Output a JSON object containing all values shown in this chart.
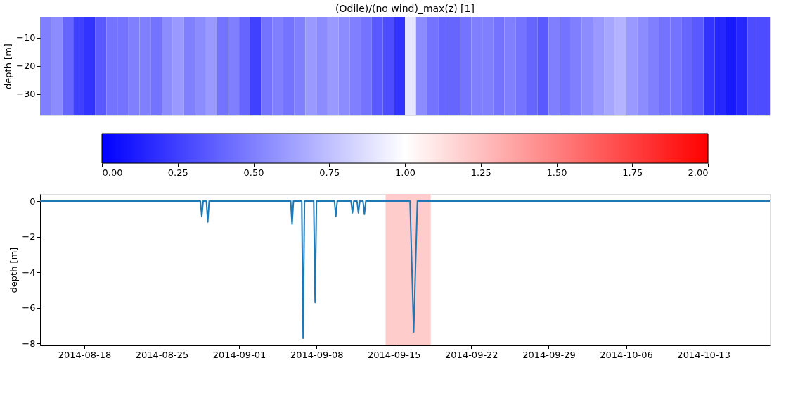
{
  "chart_data": [
    {
      "type": "heatmap",
      "title": "(Odile)/(no wind)_max(z) [1]",
      "ylabel": "depth [m]",
      "categories": [
        null,
        null,
        null,
        null,
        null,
        null,
        null,
        null,
        null,
        null,
        null,
        null,
        null,
        null,
        null,
        null,
        null,
        null,
        null,
        null,
        null,
        null,
        null,
        null,
        null,
        null,
        null,
        null,
        null,
        null,
        null,
        null,
        null,
        null,
        null,
        null,
        null,
        null,
        null,
        null,
        null,
        null,
        null,
        null,
        null,
        null,
        null,
        null,
        null,
        null,
        null,
        null,
        null,
        null,
        null,
        null,
        null,
        null,
        null,
        null,
        null,
        null,
        null,
        null,
        null,
        null
      ],
      "y_categories": [
        null,
        "−10",
        null,
        "−20",
        null,
        "−30",
        null
      ],
      "cells": [
        [
          0.5,
          0.55,
          0.4,
          0.25,
          0.2,
          0.35,
          0.45,
          0.45,
          0.5,
          0.5,
          0.45,
          0.55,
          0.6,
          0.5,
          0.55,
          0.6,
          0.45,
          0.5,
          0.4,
          0.25,
          0.45,
          0.5,
          0.45,
          0.5,
          0.6,
          0.55,
          0.6,
          0.55,
          0.5,
          0.45,
          0.35,
          0.3,
          0.2,
          0.9,
          0.55,
          0.45,
          0.4,
          0.4,
          0.45,
          0.5,
          0.5,
          0.45,
          0.5,
          0.45,
          0.4,
          0.35,
          0.5,
          0.45,
          0.5,
          0.55,
          0.6,
          0.65,
          0.7,
          0.6,
          0.55,
          0.5,
          0.45,
          0.45,
          0.4,
          0.35,
          0.2,
          0.15,
          0.1,
          0.15,
          0.3,
          0.3
        ],
        [
          0.5,
          0.55,
          0.4,
          0.25,
          0.2,
          0.35,
          0.45,
          0.45,
          0.5,
          0.5,
          0.45,
          0.55,
          0.6,
          0.5,
          0.55,
          0.6,
          0.45,
          0.5,
          0.4,
          0.25,
          0.45,
          0.5,
          0.45,
          0.5,
          0.6,
          0.55,
          0.6,
          0.55,
          0.5,
          0.45,
          0.35,
          0.3,
          0.2,
          0.9,
          0.55,
          0.45,
          0.4,
          0.4,
          0.45,
          0.5,
          0.5,
          0.45,
          0.5,
          0.45,
          0.4,
          0.35,
          0.5,
          0.45,
          0.5,
          0.55,
          0.6,
          0.65,
          0.7,
          0.6,
          0.55,
          0.5,
          0.45,
          0.45,
          0.4,
          0.35,
          0.2,
          0.15,
          0.1,
          0.15,
          0.3,
          0.3
        ],
        [
          0.5,
          0.55,
          0.4,
          0.25,
          0.2,
          0.35,
          0.45,
          0.45,
          0.5,
          0.5,
          0.45,
          0.55,
          0.6,
          0.5,
          0.55,
          0.6,
          0.45,
          0.5,
          0.4,
          0.25,
          0.45,
          0.5,
          0.45,
          0.5,
          0.6,
          0.55,
          0.6,
          0.55,
          0.5,
          0.45,
          0.35,
          0.3,
          0.2,
          0.9,
          0.55,
          0.45,
          0.4,
          0.4,
          0.45,
          0.5,
          0.5,
          0.45,
          0.5,
          0.45,
          0.4,
          0.35,
          0.5,
          0.45,
          0.5,
          0.55,
          0.6,
          0.65,
          0.7,
          0.6,
          0.55,
          0.5,
          0.45,
          0.45,
          0.4,
          0.35,
          0.2,
          0.15,
          0.1,
          0.15,
          0.3,
          0.3
        ],
        [
          0.5,
          0.55,
          0.4,
          0.25,
          0.2,
          0.35,
          0.45,
          0.45,
          0.5,
          0.5,
          0.45,
          0.55,
          0.6,
          0.5,
          0.55,
          0.6,
          0.45,
          0.5,
          0.4,
          0.25,
          0.45,
          0.5,
          0.45,
          0.5,
          0.6,
          0.55,
          0.6,
          0.55,
          0.5,
          0.45,
          0.35,
          0.3,
          0.2,
          0.9,
          0.55,
          0.45,
          0.4,
          0.4,
          0.45,
          0.5,
          0.5,
          0.45,
          0.5,
          0.45,
          0.4,
          0.35,
          0.5,
          0.45,
          0.5,
          0.55,
          0.6,
          0.65,
          0.7,
          0.6,
          0.55,
          0.5,
          0.45,
          0.45,
          0.4,
          0.35,
          0.2,
          0.15,
          0.1,
          0.15,
          0.3,
          0.3
        ],
        [
          0.5,
          0.55,
          0.4,
          0.25,
          0.2,
          0.35,
          0.45,
          0.45,
          0.5,
          0.5,
          0.45,
          0.55,
          0.6,
          0.5,
          0.55,
          0.6,
          0.45,
          0.5,
          0.4,
          0.25,
          0.45,
          0.5,
          0.45,
          0.5,
          0.6,
          0.55,
          0.6,
          0.55,
          0.5,
          0.45,
          0.35,
          0.3,
          0.2,
          0.9,
          0.55,
          0.45,
          0.4,
          0.4,
          0.45,
          0.5,
          0.5,
          0.45,
          0.5,
          0.45,
          0.4,
          0.35,
          0.5,
          0.45,
          0.5,
          0.55,
          0.6,
          0.65,
          0.7,
          0.6,
          0.55,
          0.5,
          0.45,
          0.45,
          0.4,
          0.35,
          0.2,
          0.15,
          0.1,
          0.15,
          0.3,
          0.3
        ],
        [
          0.5,
          0.55,
          0.4,
          0.25,
          0.2,
          0.35,
          0.45,
          0.45,
          0.5,
          0.5,
          0.45,
          0.55,
          0.6,
          0.5,
          0.55,
          0.6,
          0.45,
          0.5,
          0.4,
          0.25,
          0.45,
          0.5,
          0.45,
          0.5,
          0.6,
          0.55,
          0.6,
          0.55,
          0.5,
          0.45,
          0.35,
          0.3,
          0.2,
          0.9,
          0.55,
          0.45,
          0.4,
          0.4,
          0.45,
          0.5,
          0.5,
          0.45,
          0.5,
          0.45,
          0.4,
          0.35,
          0.5,
          0.45,
          0.5,
          0.55,
          0.6,
          0.65,
          0.7,
          0.6,
          0.55,
          0.5,
          0.45,
          0.45,
          0.4,
          0.35,
          0.2,
          0.15,
          0.1,
          0.15,
          0.3,
          0.3
        ],
        [
          0.5,
          0.55,
          0.4,
          0.25,
          0.2,
          0.35,
          0.45,
          0.45,
          0.5,
          0.5,
          0.45,
          0.55,
          0.6,
          0.5,
          0.55,
          0.6,
          0.45,
          0.5,
          0.4,
          0.25,
          0.45,
          0.5,
          0.45,
          0.5,
          0.6,
          0.55,
          0.6,
          0.55,
          0.5,
          0.45,
          0.35,
          0.3,
          0.2,
          0.9,
          0.55,
          0.45,
          0.4,
          0.4,
          0.45,
          0.5,
          0.5,
          0.45,
          0.5,
          0.45,
          0.4,
          0.35,
          0.5,
          0.45,
          0.5,
          0.55,
          0.6,
          0.65,
          0.7,
          0.6,
          0.55,
          0.5,
          0.45,
          0.45,
          0.4,
          0.35,
          0.2,
          0.15,
          0.1,
          0.15,
          0.3,
          0.3
        ]
      ],
      "clim": [
        0,
        2
      ],
      "cticks": [
        {
          "value": 0,
          "label": "0.00"
        },
        {
          "value": 0.25,
          "label": "0.25"
        },
        {
          "value": 0.5,
          "label": "0.50"
        },
        {
          "value": 0.75,
          "label": "0.75"
        },
        {
          "value": 1,
          "label": "1.00"
        },
        {
          "value": 1.25,
          "label": "1.25"
        },
        {
          "value": 1.5,
          "label": "1.50"
        },
        {
          "value": 1.75,
          "label": "1.75"
        },
        {
          "value": 2,
          "label": "2.00"
        }
      ],
      "tick_labels": "y"
    },
    {
      "type": "line",
      "ylabel": "depth [m]",
      "x": [
        "2014-08-14",
        "2014-08-28T12:00",
        "2014-08-28T15:00",
        "2014-08-28T18:00",
        "2014-08-29T01:00",
        "2014-08-29T04:00",
        "2014-08-29T07:00",
        "2014-09-05T16:00",
        "2014-09-05T19:00",
        "2014-09-05T22:00",
        "2014-09-06T16:00",
        "2014-09-06T19:00",
        "2014-09-06T22:00",
        "2014-09-07T18:00",
        "2014-09-07T21:00",
        "2014-09-08T00:00",
        "2014-09-09T15:00",
        "2014-09-09T18:00",
        "2014-09-09T21:00",
        "2014-09-11T03:00",
        "2014-09-11T06:00",
        "2014-09-11T09:00",
        "2014-09-11T16:00",
        "2014-09-11T19:00",
        "2014-09-11T22:00",
        "2014-09-12T05:00",
        "2014-09-12T08:00",
        "2014-09-12T11:00",
        "2014-09-16T11:00",
        "2014-09-16T19:00",
        "2014-09-17T03:00",
        "2014-10-19"
      ],
      "values": [
        0,
        0,
        -0.86,
        0,
        0,
        -1.17,
        0,
        0,
        -1.29,
        0,
        0,
        -7.7,
        0,
        0,
        -5.7,
        0,
        0,
        -0.86,
        0,
        0,
        -0.66,
        0,
        0,
        -0.66,
        0,
        0,
        -0.74,
        0,
        0,
        -7.35,
        0,
        0
      ],
      "color": "#1f77b4",
      "xlim": [
        "2014-08-14",
        "2014-10-19"
      ],
      "xticks": [
        "2014-08-18",
        "2014-08-25",
        "2014-09-01",
        "2014-09-08",
        "2014-09-15",
        "2014-09-22",
        "2014-09-29",
        "2014-10-06",
        "2014-10-13"
      ],
      "ylim": [
        -8.1,
        0.4
      ],
      "yticks": [
        0,
        {
          "value": -2,
          "label": "−2"
        },
        {
          "value": -4,
          "label": "−4"
        },
        {
          "value": -6,
          "label": "−6"
        },
        {
          "value": -8,
          "label": "−8"
        }
      ],
      "bands": [
        {
          "axis": "x",
          "from": "2014-09-14T06:00",
          "to": "2014-09-18T08:00",
          "color": "#ffcccc"
        }
      ]
    }
  ]
}
